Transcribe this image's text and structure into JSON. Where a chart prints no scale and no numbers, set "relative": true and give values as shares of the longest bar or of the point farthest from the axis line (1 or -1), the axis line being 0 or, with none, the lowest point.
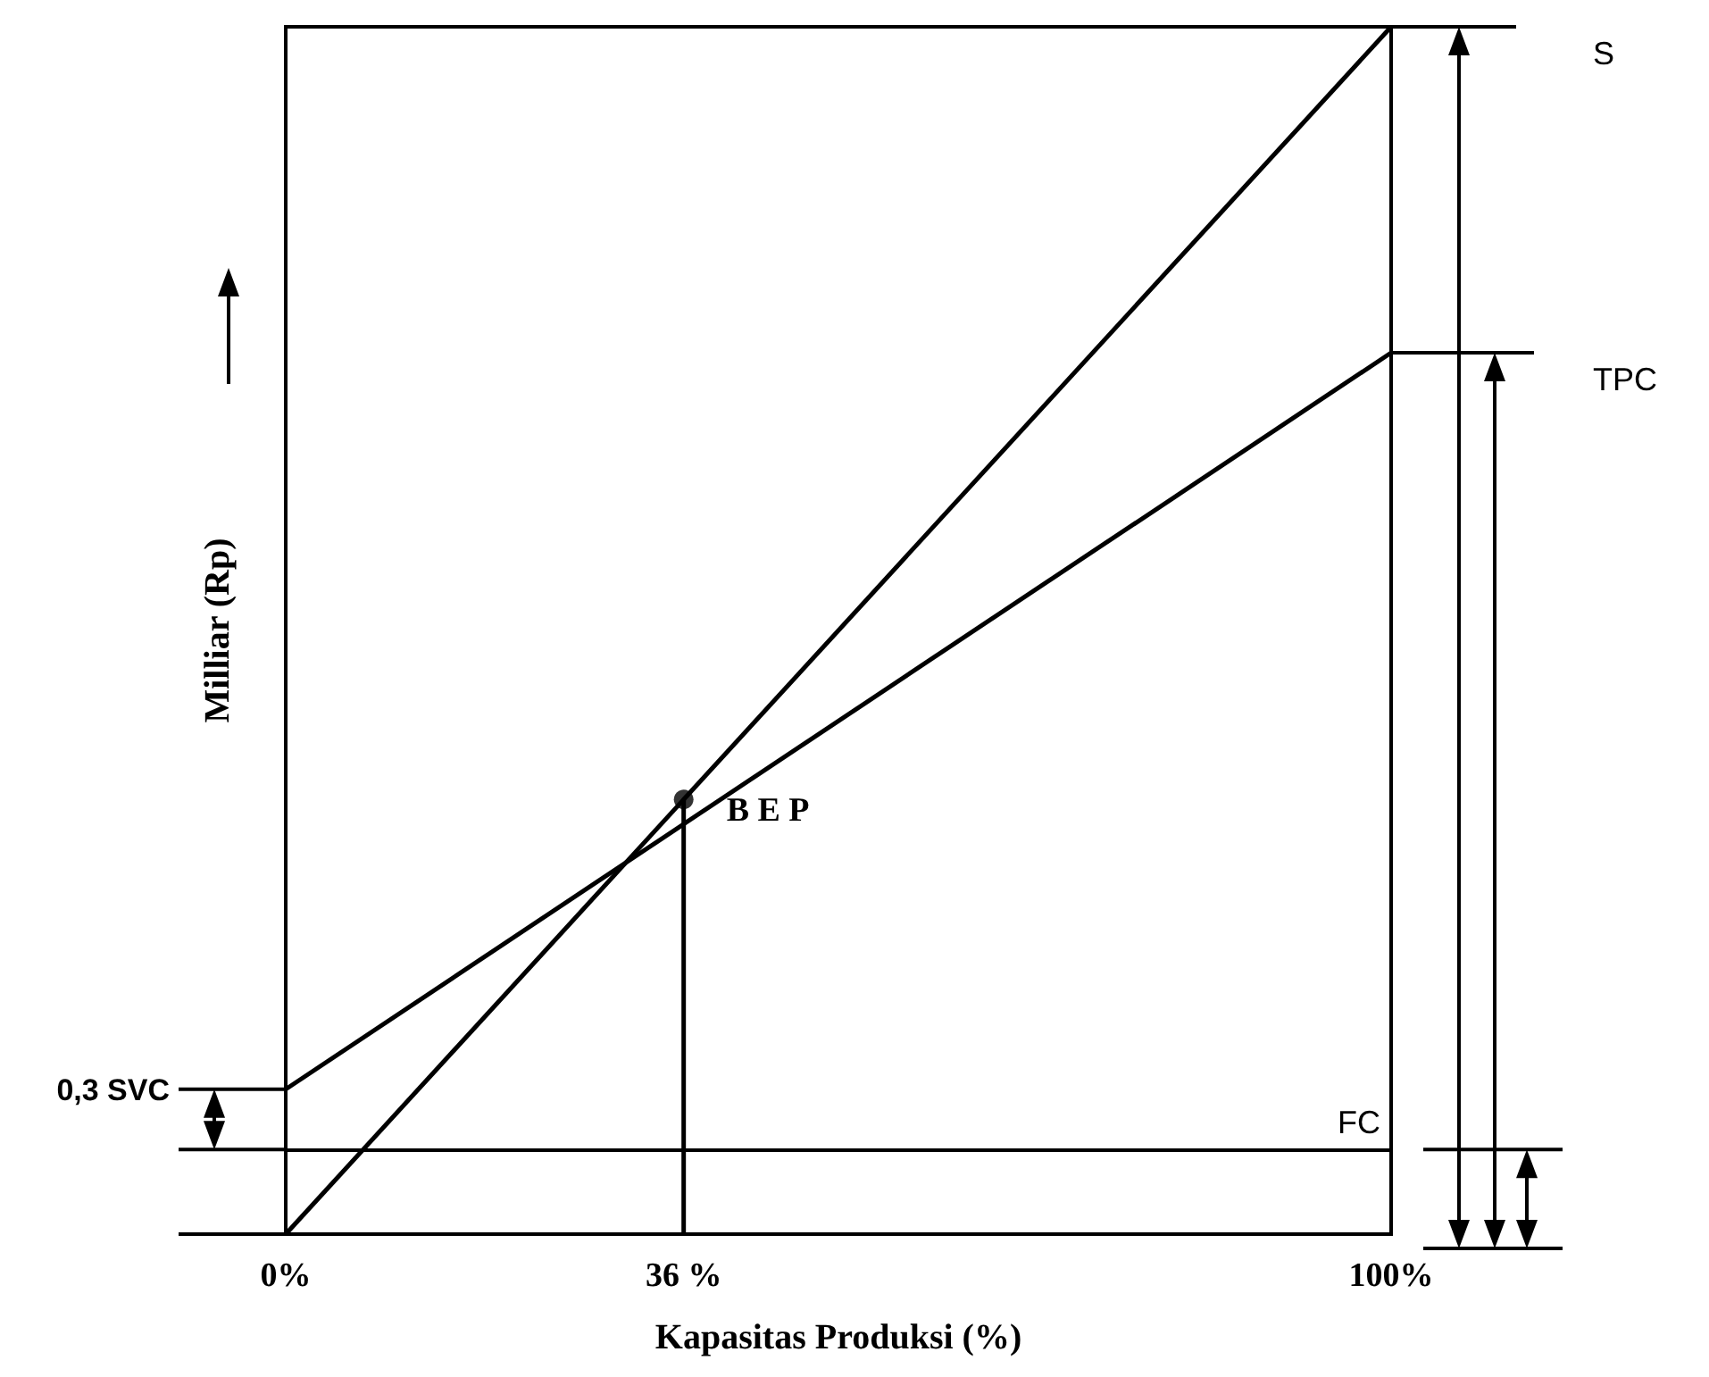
{
  "chart_data": {
    "type": "line",
    "relative": true,
    "xlabel": "Kapasitas Produksi (%)",
    "ylabel": "Milliar (Rp)",
    "xlim": [
      0,
      100
    ],
    "xticks": [
      {
        "value": 0,
        "label": "0%"
      },
      {
        "value": 36,
        "label": "36 %"
      },
      {
        "value": 100,
        "label": "100%"
      }
    ],
    "series": [
      {
        "name": "S",
        "color": "#000000",
        "x": [
          0,
          100
        ],
        "values": [
          0,
          1
        ]
      },
      {
        "name": "TPC",
        "color": "#000000",
        "x": [
          0,
          100
        ],
        "values": [
          0.12,
          0.73
        ]
      },
      {
        "color": "#000000",
        "x": [
          36,
          36
        ],
        "values": [
          0,
          0.36
        ]
      },
      {
        "type": "scatter",
        "marker": "circle",
        "color": "#000000",
        "x": [
          36
        ],
        "values": [
          0.36
        ]
      }
    ],
    "ref_lines": [
      {
        "axis": "y",
        "value": 0.07,
        "label": "FC",
        "color": "#000000"
      }
    ],
    "annotations": [
      {
        "text": "B E P",
        "x": 36,
        "y": 0.36
      },
      "0,3 SVC"
    ],
    "marker": "none",
    "line_style": "solid",
    "grid": false,
    "legend": false
  }
}
